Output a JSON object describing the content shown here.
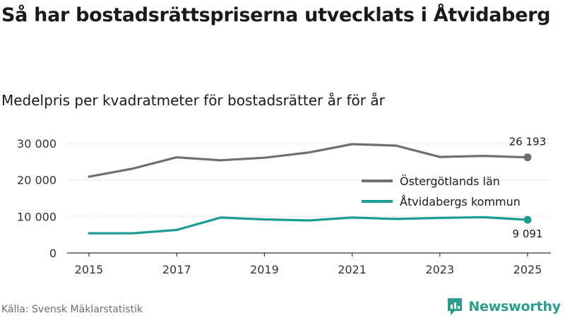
{
  "header": {
    "title": "Så har bostadsrättspriserna utvecklats i Åtvidaberg",
    "subtitle": "Medelpris per kvadratmeter för bostadsrätter år för år"
  },
  "footer": {
    "source": "Källa: Svensk Mäklarstatistik",
    "brand": "Newsworthy"
  },
  "colors": {
    "lan": "#6f6e74",
    "kommun": "#1a9e92",
    "axis": "#333333",
    "grid": "#d9d9d9",
    "brand": "#2a9d8f"
  },
  "chart_data": {
    "type": "line",
    "title": "Så har bostadsrättspriserna utvecklats i Åtvidaberg",
    "subtitle": "Medelpris per kvadratmeter för bostadsrätter år för år",
    "xlabel": "",
    "ylabel": "",
    "x": [
      2015,
      2016,
      2017,
      2018,
      2019,
      2020,
      2021,
      2022,
      2023,
      2024,
      2025
    ],
    "xticks": [
      2015,
      2017,
      2019,
      2021,
      2023,
      2025
    ],
    "xtick_labels": [
      "2015",
      "2017",
      "2019",
      "2021",
      "2023",
      "2025"
    ],
    "ylim": [
      0,
      30000
    ],
    "yticks": [
      0,
      10000,
      20000,
      30000
    ],
    "ytick_labels": [
      "0",
      "10 000",
      "20 000",
      "30 000"
    ],
    "grid": true,
    "legend_position": "right",
    "series": [
      {
        "name": "Östergötlands län",
        "color_key": "lan",
        "values": [
          20900,
          23100,
          26200,
          25400,
          26100,
          27500,
          29800,
          29400,
          26300,
          26600,
          26193
        ],
        "end_label": "26 193"
      },
      {
        "name": "Åtvidabergs kommun",
        "color_key": "kommun",
        "values": [
          5400,
          5400,
          6300,
          9700,
          9200,
          8900,
          9700,
          9300,
          9600,
          9800,
          9091
        ],
        "end_label": "9 091"
      }
    ]
  }
}
